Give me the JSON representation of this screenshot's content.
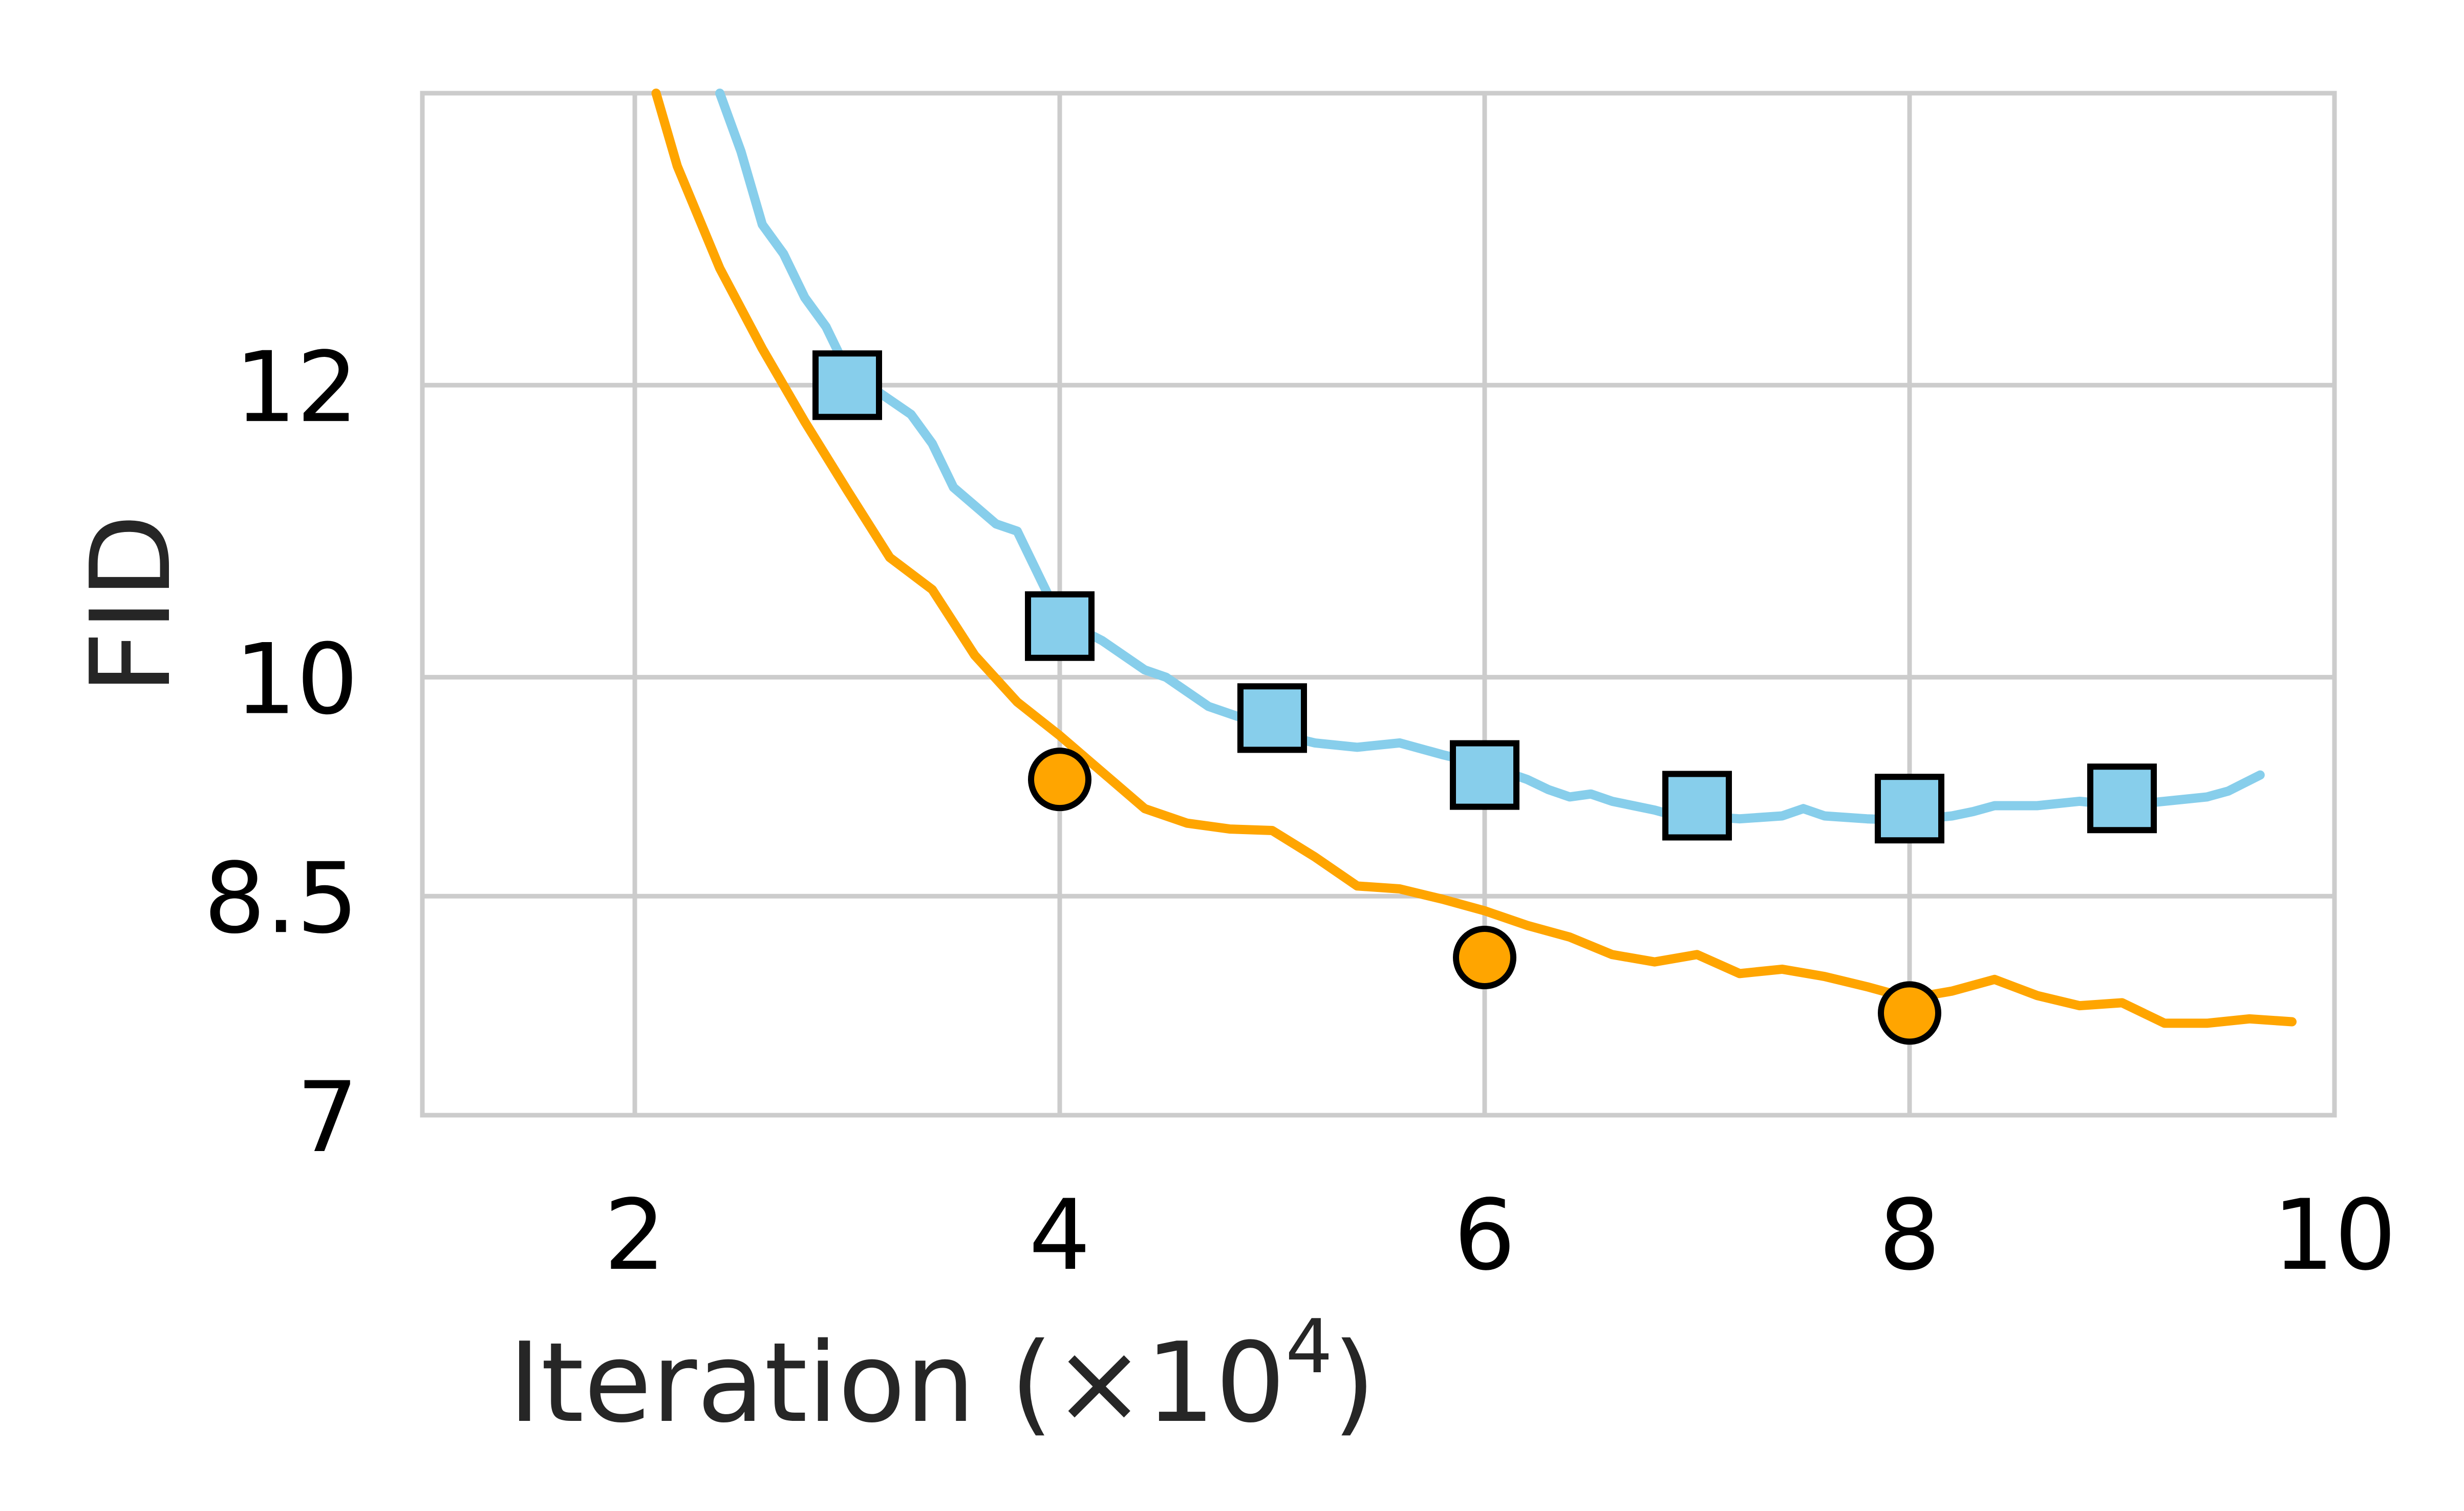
{
  "chart_data": {
    "type": "line",
    "title": "",
    "xlabel": "Iteration (×10",
    "xlabel_superscript": "4",
    "xlabel_suffix": ")",
    "ylabel": "FID",
    "xlim": [
      1,
      10
    ],
    "ylim": [
      7,
      14
    ],
    "xticks": [
      2,
      4,
      6,
      8,
      10
    ],
    "xtick_labels": [
      "2",
      "4",
      "6",
      "8",
      "10"
    ],
    "yticks": [
      7,
      8.5,
      10,
      12
    ],
    "ytick_labels": [
      "7",
      "8.5",
      "10",
      "12"
    ],
    "grid": true,
    "legend": false,
    "series": [
      {
        "color": "#87CEEB",
        "marker": "square",
        "line": [
          [
            2.4,
            14.0
          ],
          [
            2.5,
            13.6
          ],
          [
            2.6,
            13.1
          ],
          [
            2.7,
            12.9
          ],
          [
            2.8,
            12.6
          ],
          [
            2.9,
            12.4
          ],
          [
            3.0,
            12.1
          ],
          [
            3.2,
            11.9
          ],
          [
            3.3,
            11.8
          ],
          [
            3.4,
            11.6
          ],
          [
            3.5,
            11.3
          ],
          [
            3.7,
            11.05
          ],
          [
            3.8,
            11.0
          ],
          [
            3.9,
            10.7
          ],
          [
            4.0,
            10.4
          ],
          [
            4.2,
            10.25
          ],
          [
            4.4,
            10.05
          ],
          [
            4.5,
            10.0
          ],
          [
            4.6,
            9.9
          ],
          [
            4.7,
            9.8
          ],
          [
            4.9,
            9.7
          ],
          [
            5.0,
            9.62
          ],
          [
            5.2,
            9.55
          ],
          [
            5.4,
            9.52
          ],
          [
            5.6,
            9.55
          ],
          [
            5.8,
            9.47
          ],
          [
            6.0,
            9.4
          ],
          [
            6.2,
            9.3
          ],
          [
            6.3,
            9.23
          ],
          [
            6.4,
            9.18
          ],
          [
            6.5,
            9.2
          ],
          [
            6.6,
            9.15
          ],
          [
            6.7,
            9.12
          ],
          [
            6.8,
            9.09
          ],
          [
            6.9,
            9.05
          ],
          [
            7.0,
            9.05
          ],
          [
            7.2,
            9.03
          ],
          [
            7.4,
            9.05
          ],
          [
            7.5,
            9.1
          ],
          [
            7.6,
            9.05
          ],
          [
            7.8,
            9.03
          ],
          [
            8.0,
            9.02
          ],
          [
            8.2,
            9.05
          ],
          [
            8.3,
            9.08
          ],
          [
            8.4,
            9.12
          ],
          [
            8.6,
            9.12
          ],
          [
            8.8,
            9.15
          ],
          [
            9.0,
            9.12
          ],
          [
            9.2,
            9.15
          ],
          [
            9.4,
            9.18
          ],
          [
            9.5,
            9.22
          ],
          [
            9.65,
            9.33
          ]
        ],
        "markers": [
          [
            3,
            12.0
          ],
          [
            4,
            10.35
          ],
          [
            5,
            9.72
          ],
          [
            6,
            9.33
          ],
          [
            7,
            9.12
          ],
          [
            8,
            9.1
          ],
          [
            9,
            9.17
          ]
        ]
      },
      {
        "color": "#FFA500",
        "marker": "circle",
        "line": [
          [
            2.1,
            14.0
          ],
          [
            2.2,
            13.5
          ],
          [
            2.4,
            12.8
          ],
          [
            2.6,
            12.25
          ],
          [
            2.8,
            11.75
          ],
          [
            3.0,
            11.28
          ],
          [
            3.2,
            10.82
          ],
          [
            3.4,
            10.6
          ],
          [
            3.6,
            10.15
          ],
          [
            3.8,
            9.83
          ],
          [
            4.0,
            9.6
          ],
          [
            4.2,
            9.35
          ],
          [
            4.4,
            9.1
          ],
          [
            4.6,
            9.0
          ],
          [
            4.8,
            8.96
          ],
          [
            5.0,
            8.95
          ],
          [
            5.2,
            8.77
          ],
          [
            5.4,
            8.57
          ],
          [
            5.6,
            8.55
          ],
          [
            5.8,
            8.48
          ],
          [
            6.0,
            8.4
          ],
          [
            6.2,
            8.3
          ],
          [
            6.4,
            8.22
          ],
          [
            6.6,
            8.1
          ],
          [
            6.8,
            8.05
          ],
          [
            7.0,
            8.1
          ],
          [
            7.2,
            7.97
          ],
          [
            7.4,
            8.0
          ],
          [
            7.6,
            7.95
          ],
          [
            7.8,
            7.88
          ],
          [
            8.0,
            7.8
          ],
          [
            8.2,
            7.85
          ],
          [
            8.4,
            7.93
          ],
          [
            8.6,
            7.82
          ],
          [
            8.8,
            7.75
          ],
          [
            9.0,
            7.77
          ],
          [
            9.2,
            7.63
          ],
          [
            9.4,
            7.63
          ],
          [
            9.6,
            7.66
          ],
          [
            9.8,
            7.64
          ]
        ],
        "markers": [
          [
            4,
            9.3
          ],
          [
            6,
            8.08
          ],
          [
            8,
            7.7
          ]
        ]
      }
    ]
  }
}
